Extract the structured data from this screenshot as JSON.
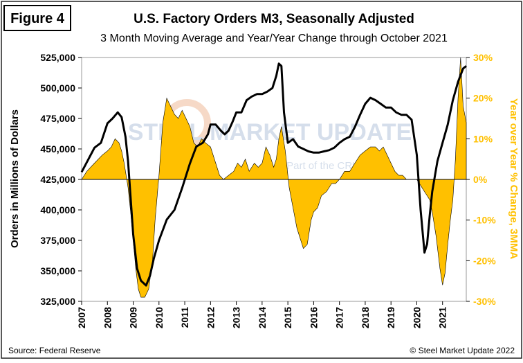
{
  "figure_label": "Figure 4",
  "title": "U.S. Factory Orders M3, Seasonally  Adjusted",
  "subtitle": "3 Month Moving Average and Year/Year Change through October 2021",
  "source": "Source: Federal Reserve",
  "copyright": "© Steel Market Update 2022",
  "watermark": {
    "main": "STEEL MARKET UPDATE",
    "sub": "Part of the CRU Group"
  },
  "colors": {
    "line": "#000000",
    "area": "#FFC000",
    "right_axis": "#FFC000"
  },
  "chart_data": {
    "type": "line",
    "title": "U.S. Factory Orders M3, Seasonally  Adjusted",
    "subtitle": "3 Month Moving Average and Year/Year Change through October 2021",
    "ylabel": "Orders in Millions of Dollars",
    "y2label": "Year over Year % Change, 3MMA",
    "x_ticks": [
      "2007",
      "2008",
      "2009",
      "2010",
      "2011",
      "2012",
      "2013",
      "2014",
      "2015",
      "2016",
      "2017",
      "2018",
      "2019",
      "2020",
      "2021"
    ],
    "y_ticks": [
      "325,000",
      "350,000",
      "375,000",
      "400,000",
      "425,000",
      "450,000",
      "475,000",
      "500,000",
      "525,000"
    ],
    "y2_ticks": [
      "30%",
      "20%",
      "10%",
      "0%",
      "-10%",
      "-20%",
      "-30%"
    ],
    "ylim": [
      325000,
      525000
    ],
    "y2lim": [
      -30,
      30
    ],
    "xlim": [
      2007.0,
      2021.92
    ],
    "series": [
      {
        "kind": "line",
        "axis": "left",
        "x": [
          2007.0,
          2007.25,
          2007.5,
          2007.75,
          2008.0,
          2008.2,
          2008.4,
          2008.55,
          2008.7,
          2008.8,
          2008.9,
          2009.0,
          2009.15,
          2009.3,
          2009.5,
          2009.65,
          2009.8,
          2010.0,
          2010.3,
          2010.6,
          2010.9,
          2011.2,
          2011.45,
          2011.7,
          2011.9,
          2012.0,
          2012.2,
          2012.4,
          2012.55,
          2012.7,
          2012.85,
          2013.0,
          2013.2,
          2013.4,
          2013.6,
          2013.8,
          2014.0,
          2014.2,
          2014.4,
          2014.55,
          2014.65,
          2014.75,
          2014.85,
          2015.0,
          2015.2,
          2015.4,
          2015.6,
          2015.8,
          2016.0,
          2016.2,
          2016.4,
          2016.6,
          2016.8,
          2017.0,
          2017.2,
          2017.4,
          2017.6,
          2017.8,
          2018.0,
          2018.2,
          2018.4,
          2018.6,
          2018.8,
          2019.0,
          2019.2,
          2019.4,
          2019.6,
          2019.8,
          2020.0,
          2020.15,
          2020.3,
          2020.4,
          2020.5,
          2020.6,
          2020.8,
          2021.0,
          2021.2,
          2021.4,
          2021.6,
          2021.8,
          2021.92
        ],
        "y": [
          431000,
          441000,
          451000,
          455000,
          471000,
          475000,
          480000,
          476000,
          460000,
          440000,
          410000,
          380000,
          352000,
          342000,
          338000,
          346000,
          360000,
          375000,
          392000,
          400000,
          418000,
          438000,
          452000,
          455000,
          462000,
          470000,
          470000,
          465000,
          462000,
          465000,
          472000,
          480000,
          480000,
          490000,
          493000,
          495000,
          495000,
          497000,
          500000,
          510000,
          520000,
          518000,
          480000,
          455000,
          458000,
          452000,
          450000,
          448000,
          447000,
          447000,
          448000,
          449000,
          451000,
          455000,
          458000,
          460000,
          468000,
          478000,
          487000,
          492000,
          490000,
          487000,
          484000,
          484000,
          480000,
          478000,
          478000,
          474000,
          445000,
          400000,
          365000,
          372000,
          395000,
          415000,
          440000,
          455000,
          470000,
          490000,
          505000,
          516000,
          518000
        ]
      },
      {
        "kind": "area",
        "axis": "right",
        "x": [
          2007.0,
          2007.2,
          2007.5,
          2007.8,
          2008.0,
          2008.15,
          2008.3,
          2008.45,
          2008.55,
          2008.65,
          2008.8,
          2008.9,
          2009.0,
          2009.1,
          2009.2,
          2009.3,
          2009.45,
          2009.6,
          2009.75,
          2009.85,
          2010.0,
          2010.15,
          2010.3,
          2010.45,
          2010.6,
          2010.75,
          2010.9,
          2011.05,
          2011.2,
          2011.35,
          2011.5,
          2011.65,
          2011.8,
          2012.0,
          2012.2,
          2012.35,
          2012.5,
          2012.7,
          2012.9,
          2013.05,
          2013.2,
          2013.35,
          2013.5,
          2013.7,
          2013.85,
          2014.0,
          2014.15,
          2014.3,
          2014.45,
          2014.55,
          2014.65,
          2014.75,
          2014.9,
          2015.05,
          2015.2,
          2015.35,
          2015.5,
          2015.6,
          2015.75,
          2015.9,
          2016.0,
          2016.15,
          2016.3,
          2016.5,
          2016.7,
          2016.85,
          2017.0,
          2017.2,
          2017.4,
          2017.6,
          2017.8,
          2018.0,
          2018.2,
          2018.4,
          2018.55,
          2018.7,
          2018.85,
          2019.0,
          2019.15,
          2019.3,
          2019.45,
          2019.6,
          2019.75,
          2019.9,
          2020.0,
          2020.1,
          2020.2,
          2020.3,
          2020.4,
          2020.5,
          2020.6,
          2020.75,
          2020.9,
          2021.0,
          2021.1,
          2021.2,
          2021.3,
          2021.4,
          2021.5,
          2021.6,
          2021.7,
          2021.8,
          2021.92
        ],
        "y": [
          0,
          2,
          4,
          6,
          7,
          8,
          10,
          9,
          7,
          4,
          -2,
          -8,
          -15,
          -22,
          -27,
          -29,
          -29,
          -27,
          -20,
          -10,
          1,
          14,
          20,
          18,
          16,
          15,
          17,
          15,
          13,
          9,
          8,
          10,
          9,
          8,
          4,
          1,
          0,
          1,
          2,
          4,
          3,
          5,
          2,
          4,
          3,
          4,
          8,
          6,
          3,
          5,
          10,
          13,
          7,
          -2,
          -7,
          -12,
          -15,
          -17,
          -16,
          -10,
          -8,
          -7,
          -4,
          -3,
          -1,
          -1,
          0,
          2,
          2,
          4,
          6,
          7,
          8,
          8,
          7,
          8,
          6,
          4,
          2,
          1,
          1,
          0,
          0,
          0,
          0,
          -1,
          -2,
          -3,
          -4,
          -5,
          -8,
          -14,
          -22,
          -26,
          -23,
          -16,
          -10,
          -5,
          5,
          20,
          30,
          18,
          14
        ]
      }
    ]
  }
}
